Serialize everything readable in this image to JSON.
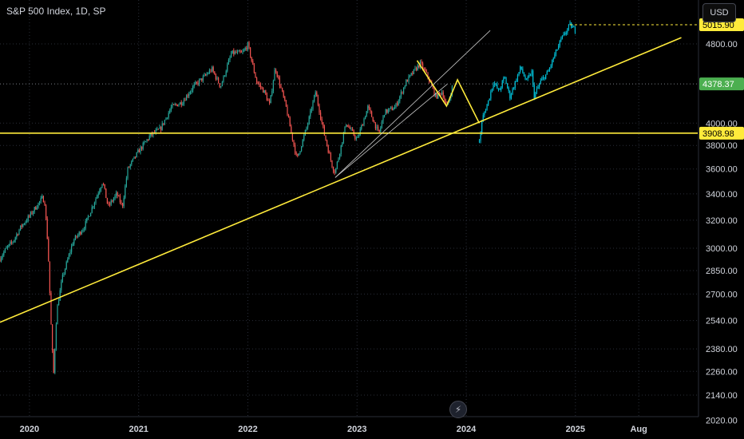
{
  "header": {
    "title": "S&P 500 Index, 1D, SP",
    "currency": "USD"
  },
  "toolbar": {
    "snap_icon": "lightning-icon"
  },
  "colors": {
    "background": "#000000",
    "grid": "#2a2e39",
    "candle_up": "#26a69a",
    "candle_down": "#ef5350",
    "projection": "#00bcd4",
    "drawing_yellow": "#ffeb3b",
    "drawing_thin": "#c8c8c8",
    "label_green": "#4caf50"
  },
  "chart_data": {
    "type": "candlestick",
    "title": "S&P 500 Index, 1D, SP",
    "y_scale": "log",
    "ylim": [
      2020,
      5120
    ],
    "x_ticks": [
      {
        "label": "2020",
        "date": 2020.0
      },
      {
        "label": "2021",
        "date": 2021.0
      },
      {
        "label": "2022",
        "date": 2022.0
      },
      {
        "label": "2023",
        "date": 2023.0
      },
      {
        "label": "2024",
        "date": 2024.0
      },
      {
        "label": "2025",
        "date": 2025.0
      },
      {
        "label": "Aug",
        "date": 2025.58
      }
    ],
    "y_ticks": [
      {
        "label": "4800.00",
        "value": 4800
      },
      {
        "label": "4000.00",
        "value": 4000
      },
      {
        "label": "3800.00",
        "value": 3800
      },
      {
        "label": "3600.00",
        "value": 3600
      },
      {
        "label": "3400.00",
        "value": 3400
      },
      {
        "label": "3200.00",
        "value": 3200
      },
      {
        "label": "3000.00",
        "value": 3000
      },
      {
        "label": "2850.00",
        "value": 2850
      },
      {
        "label": "2700.00",
        "value": 2700
      },
      {
        "label": "2540.00",
        "value": 2540
      },
      {
        "label": "2380.00",
        "value": 2380
      },
      {
        "label": "2260.00",
        "value": 2260
      },
      {
        "label": "2140.00",
        "value": 2140
      },
      {
        "label": "2020.00",
        "value": 2020
      }
    ],
    "price_labels": [
      {
        "label": "5015.90",
        "value": 5015.9,
        "style": "yellow-dashed"
      },
      {
        "label": "4378.37",
        "value": 4378.37,
        "style": "green"
      },
      {
        "label": "3908.98",
        "value": 3908.98,
        "style": "yellow-line"
      }
    ],
    "price_path": [
      [
        2019.73,
        2930
      ],
      [
        2019.78,
        2990
      ],
      [
        2019.85,
        3050
      ],
      [
        2019.92,
        3150
      ],
      [
        2020.0,
        3230
      ],
      [
        2020.06,
        3300
      ],
      [
        2020.12,
        3370
      ],
      [
        2020.14,
        3330
      ],
      [
        2020.17,
        3000
      ],
      [
        2020.2,
        2480
      ],
      [
        2020.22,
        2237
      ],
      [
        2020.25,
        2600
      ],
      [
        2020.3,
        2800
      ],
      [
        2020.4,
        3050
      ],
      [
        2020.5,
        3150
      ],
      [
        2020.6,
        3350
      ],
      [
        2020.67,
        3500
      ],
      [
        2020.72,
        3300
      ],
      [
        2020.8,
        3400
      ],
      [
        2020.85,
        3300
      ],
      [
        2020.9,
        3600
      ],
      [
        2021.0,
        3750
      ],
      [
        2021.1,
        3880
      ],
      [
        2021.2,
        3950
      ],
      [
        2021.3,
        4150
      ],
      [
        2021.4,
        4200
      ],
      [
        2021.5,
        4350
      ],
      [
        2021.6,
        4450
      ],
      [
        2021.67,
        4530
      ],
      [
        2021.75,
        4350
      ],
      [
        2021.85,
        4700
      ],
      [
        2021.95,
        4700
      ],
      [
        2022.0,
        4790
      ],
      [
        2022.08,
        4400
      ],
      [
        2022.15,
        4300
      ],
      [
        2022.2,
        4170
      ],
      [
        2022.25,
        4550
      ],
      [
        2022.35,
        4150
      ],
      [
        2022.4,
        3900
      ],
      [
        2022.45,
        3680
      ],
      [
        2022.55,
        4000
      ],
      [
        2022.62,
        4300
      ],
      [
        2022.7,
        3900
      ],
      [
        2022.78,
        3600
      ],
      [
        2022.8,
        3577
      ],
      [
        2022.9,
        4000
      ],
      [
        2023.0,
        3850
      ],
      [
        2023.1,
        4150
      ],
      [
        2023.2,
        3900
      ],
      [
        2023.25,
        4100
      ],
      [
        2023.35,
        4150
      ],
      [
        2023.45,
        4400
      ],
      [
        2023.55,
        4550
      ],
      [
        2023.58,
        4588
      ],
      [
        2023.65,
        4450
      ],
      [
        2023.72,
        4250
      ],
      [
        2023.78,
        4300
      ],
      [
        2023.82,
        4150
      ],
      [
        2023.85,
        4250
      ],
      [
        2023.88,
        4378
      ]
    ],
    "projection_path": [
      [
        2024.12,
        3840
      ],
      [
        2024.15,
        4050
      ],
      [
        2024.2,
        4200
      ],
      [
        2024.25,
        4400
      ],
      [
        2024.3,
        4300
      ],
      [
        2024.35,
        4450
      ],
      [
        2024.4,
        4250
      ],
      [
        2024.45,
        4400
      ],
      [
        2024.5,
        4550
      ],
      [
        2024.55,
        4400
      ],
      [
        2024.6,
        4500
      ],
      [
        2024.62,
        4250
      ],
      [
        2024.68,
        4400
      ],
      [
        2024.75,
        4500
      ],
      [
        2024.8,
        4650
      ],
      [
        2024.87,
        4850
      ],
      [
        2024.92,
        4950
      ],
      [
        2024.95,
        5015
      ],
      [
        2025.0,
        4950
      ]
    ],
    "drawings": [
      {
        "name": "long-trendline",
        "points": [
          [
            2019.73,
            2530
          ],
          [
            2025.97,
            4870
          ]
        ],
        "color": "#ffeb3b"
      },
      {
        "name": "horizontal-support",
        "points": [
          [
            2019.73,
            3909
          ],
          [
            2026.12,
            3909
          ]
        ],
        "color": "#ffeb3b"
      },
      {
        "name": "thin-trendline",
        "points": [
          [
            2022.8,
            3530
          ],
          [
            2023.83,
            4380
          ]
        ],
        "color": "#c8c8c8"
      },
      {
        "name": "channel-line",
        "points": [
          [
            2022.8,
            3530
          ],
          [
            2024.22,
            4950
          ]
        ],
        "color": "#c8c8c8"
      },
      {
        "name": "zigzag-projection",
        "points": [
          [
            2023.55,
            4620
          ],
          [
            2023.82,
            4160
          ],
          [
            2023.92,
            4420
          ],
          [
            2024.12,
            4000
          ]
        ],
        "color": "#ffeb3b"
      }
    ]
  }
}
